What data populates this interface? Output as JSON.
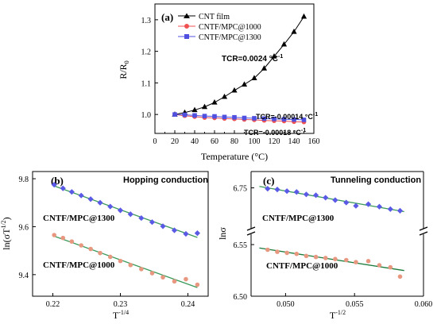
{
  "chart_data": [
    {
      "panel": "(a)",
      "type": "line",
      "xlabel": "Temperature (°C)",
      "ylabel": "R/R",
      "ylabel_sub": "0",
      "xlim": [
        0,
        160
      ],
      "ylim": [
        0.94,
        1.35
      ],
      "xticks": [
        0,
        20,
        40,
        60,
        80,
        100,
        120,
        140,
        160
      ],
      "yticks": [
        1.0,
        1.1,
        1.2,
        1.3
      ],
      "legend": {
        "position": "top-center"
      },
      "series": [
        {
          "name": "CNT film",
          "color": "#000000",
          "marker": "triangle",
          "x": [
            20,
            30,
            40,
            50,
            60,
            70,
            80,
            90,
            100,
            110,
            120,
            130,
            140,
            150
          ],
          "y": [
            1.0,
            1.006,
            1.014,
            1.024,
            1.038,
            1.056,
            1.076,
            1.095,
            1.115,
            1.146,
            1.184,
            1.222,
            1.262,
            1.31
          ]
        },
        {
          "name": "CNTF/MPC@1000",
          "color": "#f05050",
          "marker": "circle",
          "x": [
            20,
            30,
            40,
            50,
            60,
            70,
            80,
            90,
            100,
            110,
            120,
            130,
            140,
            150
          ],
          "y": [
            1.0,
            0.996,
            0.993,
            0.99,
            0.989,
            0.987,
            0.986,
            0.984,
            0.983,
            0.981,
            0.98,
            0.979,
            0.977,
            0.976
          ]
        },
        {
          "name": "CNTF/MPC@1300",
          "color": "#5050e0",
          "marker": "square",
          "x": [
            20,
            30,
            40,
            50,
            60,
            70,
            80,
            90,
            100,
            110,
            120,
            130,
            140,
            150
          ],
          "y": [
            1.0,
            0.999,
            0.997,
            0.995,
            0.994,
            0.992,
            0.991,
            0.989,
            0.988,
            0.987,
            0.986,
            0.985,
            0.984,
            0.983
          ]
        }
      ],
      "annotations": [
        {
          "text": "TCR=0.0024 °C",
          "sup": "-1",
          "color": "#000000"
        },
        {
          "text": "TCR=-0.00014 °C",
          "sup": "-1",
          "color": "#5050e0"
        },
        {
          "text": "TCR=-0.00018 °C",
          "sup": "-1",
          "color": "#f05050"
        }
      ]
    },
    {
      "panel": "(b)",
      "title": "Hopping conduction",
      "type": "scatter",
      "xlabel": "T",
      "xlabel_sup": "-1/4",
      "ylabel": "ln(σT",
      "ylabel_sup": "1/2",
      "ylabel_end": ")",
      "xlim": [
        0.217,
        0.243
      ],
      "ylim": [
        9.31,
        9.83
      ],
      "xticks": [
        0.22,
        0.23,
        0.24
      ],
      "yticks": [
        9.4,
        9.6,
        9.8
      ],
      "series": [
        {
          "name": "CNTF/MPC@1300",
          "color": "#5a5ae6",
          "marker": "diamond",
          "fit_color": "#3a9a5a",
          "x": [
            0.2202,
            0.2215,
            0.2228,
            0.2242,
            0.2256,
            0.227,
            0.2285,
            0.23,
            0.2315,
            0.2331,
            0.2347,
            0.2363,
            0.238,
            0.2397,
            0.2414
          ],
          "y": [
            9.775,
            9.76,
            9.745,
            9.73,
            9.715,
            9.7,
            9.684,
            9.668,
            9.652,
            9.636,
            9.619,
            9.602,
            9.585,
            9.57,
            9.573
          ]
        },
        {
          "name": "CNTF/MPC@1000",
          "color": "#e89880",
          "marker": "circle",
          "fit_color": "#3a9a5a",
          "x": [
            0.2202,
            0.2215,
            0.2228,
            0.2242,
            0.2256,
            0.227,
            0.2285,
            0.23,
            0.2315,
            0.2331,
            0.2347,
            0.2363,
            0.238,
            0.2397,
            0.2414
          ],
          "y": [
            9.565,
            9.553,
            9.538,
            9.522,
            9.507,
            9.49,
            9.474,
            9.457,
            9.44,
            9.423,
            9.406,
            9.389,
            9.372,
            9.381,
            9.358
          ]
        }
      ]
    },
    {
      "panel": "(c)",
      "title": "Tunneling conduction",
      "type": "scatter",
      "xlabel": "T",
      "xlabel_sup": "-1/2",
      "ylabel": "lnσ",
      "xlim": [
        0.0475,
        0.06
      ],
      "ylim_upper": [
        6.7,
        6.77
      ],
      "ylim_lower": [
        6.5,
        6.56
      ],
      "axis_break": true,
      "xticks": [
        0.05,
        0.055,
        0.06
      ],
      "xtick_labels": [
        "0.050",
        "0.055",
        "0.060"
      ],
      "yticks": [
        6.5,
        6.55,
        6.75
      ],
      "ytick_labels": [
        "6.50",
        "6.55",
        "6.75"
      ],
      "series": [
        {
          "name": "CNTF/MPC@1300",
          "color": "#5a5ae6",
          "marker": "diamond",
          "fit_color": "#3a9a5a",
          "x": [
            0.0487,
            0.0494,
            0.0501,
            0.0508,
            0.0515,
            0.0522,
            0.0529,
            0.0536,
            0.0544,
            0.0551,
            0.056,
            0.0568,
            0.0576,
            0.0583
          ],
          "y": [
            6.749,
            6.748,
            6.746,
            6.745,
            6.742,
            6.741,
            6.738,
            6.735,
            6.732,
            6.728,
            6.73,
            6.727,
            6.724,
            6.722
          ]
        },
        {
          "name": "CNTF/MPC@1000",
          "color": "#e89880",
          "marker": "circle",
          "fit_color": "#1a7a3a",
          "x": [
            0.0487,
            0.0494,
            0.0501,
            0.0508,
            0.0515,
            0.0522,
            0.0529,
            0.0536,
            0.0544,
            0.0551,
            0.056,
            0.0568,
            0.0576,
            0.0583
          ],
          "y": [
            6.545,
            6.543,
            6.542,
            6.541,
            6.539,
            6.538,
            6.537,
            6.536,
            6.535,
            6.533,
            6.534,
            6.53,
            6.528,
            6.519
          ]
        }
      ]
    }
  ]
}
